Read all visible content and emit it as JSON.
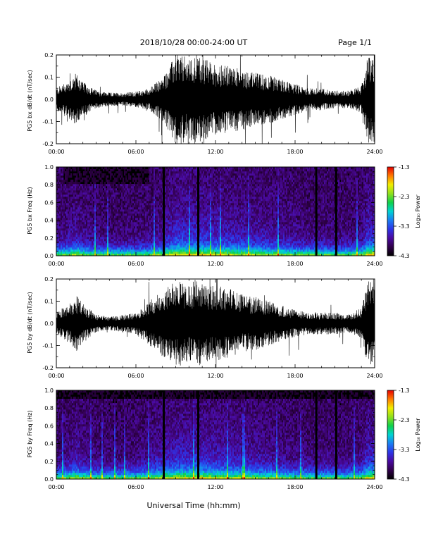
{
  "header": {
    "title": "2018/10/28   00:00-24:00 UT",
    "page": "Page 1/1"
  },
  "footer": {
    "xlabel": "Universal Time (hh:mm)"
  },
  "colorbar": {
    "label": "Log₁₀ Power",
    "ticks": [
      "-1.3",
      "-2.3",
      "-3.3",
      "-4.3"
    ],
    "tick_values": [
      -1.3,
      -2.3,
      -3.3,
      -4.3
    ],
    "range": [
      -4.3,
      -1.3
    ],
    "colormap": [
      "#000000",
      "#30004a",
      "#4a0aa0",
      "#2d34e6",
      "#1a7df2",
      "#00d2d2",
      "#10d04a",
      "#8fe01e",
      "#f0ee00",
      "#ff7a00",
      "#e60000"
    ]
  },
  "chart_data": [
    {
      "type": "line",
      "ylabel": "PG5 bx dB/dt (nT/sec)",
      "xticks": [
        "00:00",
        "06:00",
        "12:00",
        "18:00",
        "24:00"
      ],
      "xlim": [
        0,
        24
      ],
      "ylim": [
        -0.2,
        0.2
      ],
      "yticks": [
        "0.2",
        "0.1",
        "0.0",
        "-0.1",
        "-0.2"
      ],
      "ytick_values": [
        0.2,
        0.1,
        0.0,
        -0.1,
        -0.2
      ],
      "amplitude_envelope": {
        "hours": [
          0,
          1,
          1.5,
          2,
          3,
          4,
          5,
          6,
          7,
          8,
          9,
          9.5,
          10,
          10.5,
          11,
          12,
          13,
          14,
          15,
          16,
          17,
          18,
          19,
          20,
          21,
          22,
          23,
          23.5,
          24
        ],
        "amp": [
          0.05,
          0.09,
          0.12,
          0.08,
          0.04,
          0.03,
          0.03,
          0.035,
          0.05,
          0.1,
          0.2,
          0.2,
          0.18,
          0.2,
          0.19,
          0.16,
          0.15,
          0.14,
          0.12,
          0.11,
          0.09,
          0.07,
          0.05,
          0.05,
          0.04,
          0.04,
          0.06,
          0.2,
          0.2
        ]
      }
    },
    {
      "type": "heatmap",
      "ylabel": "PG5 bx Freq (Hz)",
      "xticks": [
        "00:00",
        "06:00",
        "12:00",
        "18:00",
        "24:00"
      ],
      "xlim": [
        0,
        24
      ],
      "ylim": [
        0,
        1.0
      ],
      "yticks": [
        "1.0",
        "0.8",
        "0.6",
        "0.4",
        "0.2",
        "0.0"
      ],
      "ytick_values": [
        1.0,
        0.8,
        0.6,
        0.4,
        0.2,
        0.0
      ],
      "data_gap_hours": [
        8.1,
        10.7,
        19.6,
        21.1
      ]
    },
    {
      "type": "line",
      "ylabel": "PG5 by dB/dt (nT/sec)",
      "xticks": [
        "00:00",
        "06:00",
        "12:00",
        "18:00",
        "24:00"
      ],
      "xlim": [
        0,
        24
      ],
      "ylim": [
        -0.2,
        0.2
      ],
      "yticks": [
        "0.2",
        "0.1",
        "0.0",
        "-0.1",
        "-0.2"
      ],
      "ytick_values": [
        0.2,
        0.1,
        0.0,
        -0.1,
        -0.2
      ],
      "amplitude_envelope": {
        "hours": [
          0,
          1,
          1.5,
          2,
          3,
          4,
          5,
          6,
          7,
          8,
          9,
          9.5,
          10,
          10.5,
          11,
          12,
          13,
          14,
          15,
          16,
          17,
          18,
          19,
          20,
          21,
          22,
          23,
          23.5,
          24
        ],
        "amp": [
          0.05,
          0.09,
          0.13,
          0.09,
          0.04,
          0.03,
          0.04,
          0.05,
          0.1,
          0.15,
          0.19,
          0.19,
          0.17,
          0.2,
          0.18,
          0.17,
          0.16,
          0.13,
          0.12,
          0.1,
          0.08,
          0.06,
          0.05,
          0.05,
          0.05,
          0.04,
          0.07,
          0.2,
          0.2
        ]
      }
    },
    {
      "type": "heatmap",
      "ylabel": "PG5 by Freq (Hz)",
      "xticks": [
        "00:00",
        "06:00",
        "12:00",
        "18:00",
        "24:00"
      ],
      "xlim": [
        0,
        24
      ],
      "ylim": [
        0,
        1.0
      ],
      "yticks": [
        "1.0",
        "0.8",
        "0.6",
        "0.4",
        "0.2",
        "0.0"
      ],
      "ytick_values": [
        1.0,
        0.8,
        0.6,
        0.4,
        0.2,
        0.0
      ],
      "data_gap_hours": [
        8.1,
        10.7,
        19.6,
        21.1
      ]
    }
  ]
}
